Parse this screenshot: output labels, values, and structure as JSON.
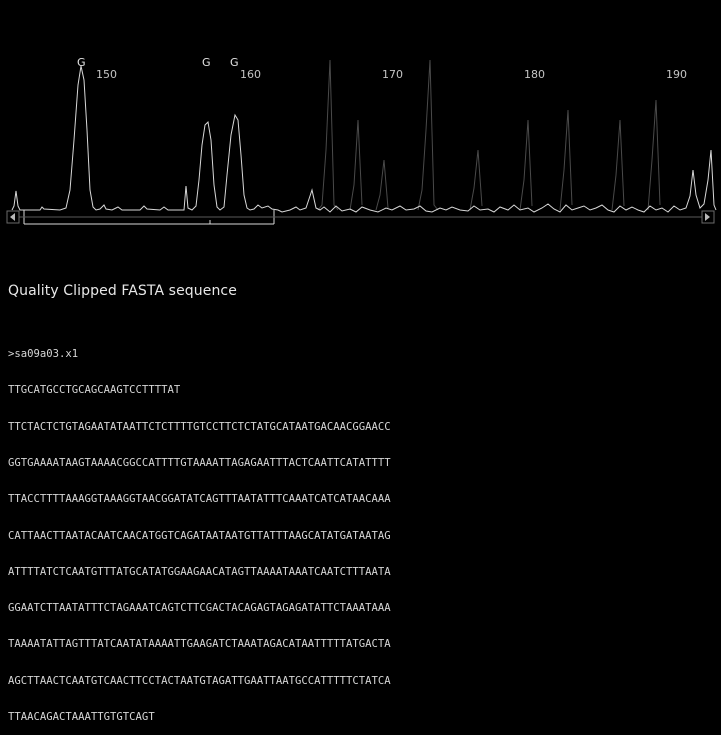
{
  "trace": {
    "base_calls": [
      "G",
      "G",
      "G"
    ],
    "position_labels": [
      "150",
      "160",
      "170",
      "180",
      "190"
    ],
    "scroll_left_glyph": "◄",
    "scroll_right_glyph": "►",
    "scroll_left_icon": "arrow-left-icon",
    "scroll_right_icon": "arrow-right-icon"
  },
  "section": {
    "title": "Quality Clipped FASTA sequence"
  },
  "fasta": {
    "header": ">sa09a03.x1",
    "lines": [
      "TTGCATGCCTGCAGCAAGTCCTTTTAT",
      "TTCTACTCTGTAGAATATAATTCTCTTTTGTCCTTCTCTATGCATAATGACAACGGAACC",
      "GGTGAAAATAAGTAAAACGGCCATTTTGTAAAATTAGAGAATTTACTCAATTCATATTTT",
      "TTACCTTTTAAAGGTAAAGGTAACGGATATCAGTTTAATATTTCAAATCATCATAACAAA",
      "CATTAACTTAATACAATCAACATGGTCAGATAATAATGTTATTTAAGCATATGATAATAG",
      "ATTTTATCTCAATGTTTATGCATATGGAAGAACATAGTTAAAATAAATCAATCTTTAATA",
      "GGAATCTTAATATTTCTAGAAATCAGTCTTCGACTACAGAGTAGAGATATTCTAAATAAA",
      "TAAAATATTAGTTTATCAATATAAAATTGAAGATCTAAATAGACATAATTTTTATGACTA",
      "AGCTTAACTCAATGTCAACTTCCTACTAATGTAGATTGAATTAATGCCATTTTTCTATCA",
      "TTAACAGACTAAATTGTGTCAGT"
    ]
  },
  "colors": {
    "background": "#000000",
    "trace": "#d8d8d8",
    "text": "#e8e8e8"
  }
}
